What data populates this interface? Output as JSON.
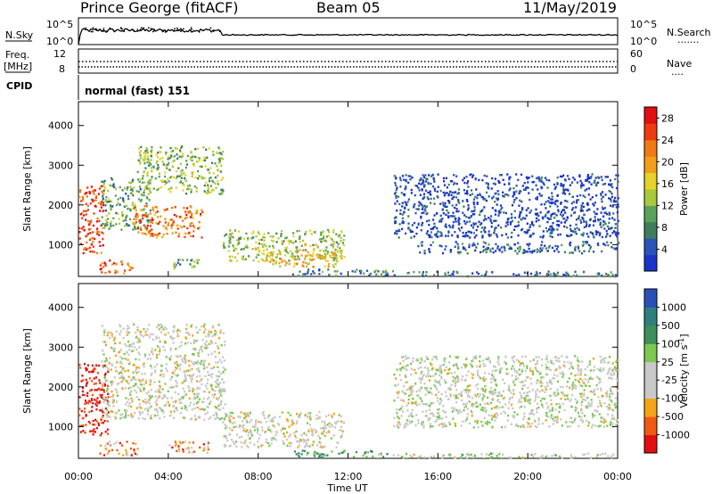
{
  "header": {
    "station": "Prince George (fitACF)",
    "beam": "Beam 05",
    "date": "11/May/2019"
  },
  "colors": {
    "power": [
      "#1a33c8",
      "#2a52b8",
      "#3f7d5e",
      "#5aa15a",
      "#a8c93a",
      "#e6d22a",
      "#f0a018",
      "#f07a14",
      "#ee3c10",
      "#e01010"
    ],
    "velocity": [
      "#e01010",
      "#f05a14",
      "#f5a318",
      "#c8c8c8",
      "#c8c8c8",
      "#7cc850",
      "#3f8f5a",
      "#2f7f7f",
      "#2a50b8"
    ],
    "trace": "#000000"
  },
  "chart_data": [
    {
      "type": "line",
      "name": "noise panel",
      "left_label": "N.Sky",
      "right_label": "N.Search",
      "left_ticks": [
        "10^5",
        "10^0"
      ],
      "right_ticks": [
        "10^5",
        "10^0"
      ],
      "right_legend": "......."
    },
    {
      "type": "line",
      "name": "frequency / nave panel",
      "left_label_top": "Freq.",
      "left_label_bottom": "[MHz]",
      "right_label": "Nave",
      "left_ticks": [
        "12",
        "8"
      ],
      "right_ticks": [
        "60",
        "0"
      ],
      "right_legend": "...."
    },
    {
      "type": "text",
      "cpid_label": "CPID",
      "cpid_value": "normal (fast) 151"
    },
    {
      "type": "heatmap",
      "name": "power",
      "ylabel": "Slant Range [km]",
      "yticks": [
        1000,
        2000,
        3000,
        4000
      ],
      "ylim": [
        200,
        4600
      ],
      "xlim": [
        0,
        24
      ],
      "colorbar_label": "Power [dB]",
      "colorbar_ticks": [
        4,
        8,
        12,
        16,
        20,
        24,
        28
      ],
      "colorbar_range": [
        0,
        30
      ],
      "echo_regions": [
        {
          "t0": 0.0,
          "t1": 1.1,
          "r0": 800,
          "r1": 2500,
          "level": 0.85
        },
        {
          "t0": 0.9,
          "t1": 2.4,
          "r0": 300,
          "r1": 650,
          "level": 0.8
        },
        {
          "t0": 1.0,
          "t1": 3.2,
          "r0": 1400,
          "r1": 2700,
          "level": 0.35
        },
        {
          "t0": 2.4,
          "t1": 5.5,
          "r0": 1200,
          "r1": 2000,
          "level": 0.75
        },
        {
          "t0": 2.6,
          "t1": 6.4,
          "r0": 2300,
          "r1": 3500,
          "level": 0.4
        },
        {
          "t0": 4.2,
          "t1": 5.6,
          "r0": 400,
          "r1": 650,
          "level": 0.3
        },
        {
          "t0": 6.4,
          "t1": 11.8,
          "r0": 600,
          "r1": 1400,
          "level": 0.45
        },
        {
          "t0": 8.2,
          "t1": 11.6,
          "r0": 450,
          "r1": 900,
          "level": 0.6
        },
        {
          "t0": 9.5,
          "t1": 14.0,
          "r0": 250,
          "r1": 400,
          "level": 0.25
        },
        {
          "t0": 14.0,
          "t1": 24.0,
          "r0": 1200,
          "r1": 2800,
          "level": 0.1
        },
        {
          "t0": 15.0,
          "t1": 24.0,
          "r0": 800,
          "r1": 1100,
          "level": 0.15
        },
        {
          "t0": 13.0,
          "t1": 24.0,
          "r0": 220,
          "r1": 350,
          "level": 0.2
        }
      ]
    },
    {
      "type": "heatmap",
      "name": "velocity",
      "ylabel": "Slant Range [km]",
      "yticks": [
        1000,
        2000,
        3000,
        4000
      ],
      "ylim": [
        200,
        4600
      ],
      "xlim": [
        0,
        24
      ],
      "colorbar_label": "Velocity [m s",
      "colorbar_label_sup": "-1",
      "colorbar_label_end": "]",
      "colorbar_ticks": [
        "1000",
        "500",
        "100",
        "25",
        "-25",
        "-100",
        "-500",
        "-1000"
      ],
      "xticks": [
        "00:00",
        "04:00",
        "08:00",
        "12:00",
        "16:00",
        "20:00",
        "00:00"
      ],
      "xlabel": "Time UT",
      "echo_regions": [
        {
          "t0": 0.0,
          "t1": 1.3,
          "r0": 800,
          "r1": 2600,
          "level": 0.05
        },
        {
          "t0": 0.9,
          "t1": 2.6,
          "r0": 300,
          "r1": 650,
          "level": 0.25
        },
        {
          "t0": 1.0,
          "t1": 6.5,
          "r0": 1200,
          "r1": 3600,
          "level": 0.45
        },
        {
          "t0": 4.0,
          "t1": 5.8,
          "r0": 350,
          "r1": 650,
          "level": 0.25
        },
        {
          "t0": 6.4,
          "t1": 11.8,
          "r0": 500,
          "r1": 1400,
          "level": 0.45
        },
        {
          "t0": 9.5,
          "t1": 14.0,
          "r0": 250,
          "r1": 420,
          "level": 0.7
        },
        {
          "t0": 14.0,
          "t1": 24.0,
          "r0": 1000,
          "r1": 2800,
          "level": 0.48
        },
        {
          "t0": 13.0,
          "t1": 24.0,
          "r0": 220,
          "r1": 350,
          "level": 0.5
        }
      ]
    }
  ]
}
